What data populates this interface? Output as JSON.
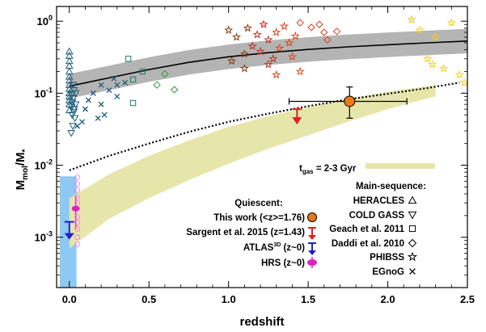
{
  "chart_data": {
    "type": "scatter",
    "x_axis": {
      "label": "redshift",
      "range": [
        -0.08,
        2.5
      ],
      "ticks": [
        0.0,
        0.5,
        1.0,
        1.5,
        2.0,
        2.5
      ],
      "tick_labels": [
        "0.0",
        "0.5",
        "1.0",
        "1.5",
        "2.0",
        "2.5"
      ]
    },
    "y_axis": {
      "label_main": "M",
      "label_sub1": "mol",
      "label_mid": "/M",
      "label_sub2": "*",
      "scale": "log",
      "range": [
        0.0002,
        1.6
      ],
      "ticks": [
        0.001,
        0.01,
        0.1,
        1
      ],
      "tick_base": "10",
      "tick_exponents": [
        "-3",
        "-2",
        "-1",
        "0"
      ]
    },
    "scaling_relation": {
      "x": [
        0.0,
        0.25,
        0.5,
        0.75,
        1.0,
        1.25,
        1.5,
        1.75,
        2.0,
        2.25,
        2.5
      ],
      "y": [
        0.125,
        0.163,
        0.213,
        0.268,
        0.32,
        0.365,
        0.405,
        0.44,
        0.47,
        0.5,
        0.53
      ],
      "band_factor": 1.48
    },
    "extrapolation_dotted": {
      "x": [
        0.0,
        0.25,
        0.5,
        0.75,
        1.0,
        1.25,
        1.5,
        1.75,
        2.0,
        2.25,
        2.45
      ],
      "y": [
        0.0085,
        0.0135,
        0.02,
        0.029,
        0.04,
        0.052,
        0.066,
        0.082,
        0.098,
        0.118,
        0.14
      ]
    },
    "tgas_band": {
      "x": [
        0.0,
        0.25,
        0.5,
        0.75,
        1.0,
        1.25,
        1.5,
        1.75,
        2.0,
        2.25,
        2.3
      ],
      "lower": [
        0.0007,
        0.0018,
        0.0035,
        0.0062,
        0.0105,
        0.017,
        0.026,
        0.04,
        0.06,
        0.085,
        0.09
      ],
      "upper": [
        0.0035,
        0.0075,
        0.0135,
        0.022,
        0.034,
        0.048,
        0.064,
        0.083,
        0.105,
        0.125,
        0.13
      ]
    },
    "hrs_range": {
      "x_range": [
        -0.06,
        0.045
      ],
      "y_range": [
        0.0002,
        0.007
      ]
    },
    "series": [
      {
        "name": "HERACLES",
        "marker": "triangle-up",
        "color": "#1a5a7a",
        "points": [
          [
            0,
            0.38
          ],
          [
            0,
            0.33
          ],
          [
            0,
            0.28
          ],
          [
            0,
            0.24
          ],
          [
            0,
            0.2
          ],
          [
            0,
            0.17
          ],
          [
            0,
            0.15
          ],
          [
            0,
            0.13
          ],
          [
            0,
            0.115
          ],
          [
            0,
            0.1
          ],
          [
            0,
            0.09
          ],
          [
            0,
            0.08
          ],
          [
            0,
            0.07
          ],
          [
            0,
            0.058
          ]
        ]
      },
      {
        "name": "COLD GASS",
        "marker": "triangle-down",
        "color": "#1a5a7a",
        "points": [
          [
            0.015,
            0.095
          ],
          [
            0.025,
            0.13
          ],
          [
            0.02,
            0.075
          ],
          [
            0.03,
            0.06
          ],
          [
            0.018,
            0.05
          ],
          [
            0.035,
            0.045
          ],
          [
            0.022,
            0.035
          ],
          [
            0.012,
            0.028
          ],
          [
            0.03,
            0.11
          ],
          [
            0.025,
            0.085
          ],
          [
            0.04,
            0.07
          ],
          [
            0.015,
            0.065
          ],
          [
            0.028,
            0.055
          ],
          [
            0.04,
            0.1
          ]
        ]
      },
      {
        "name": "Geach et al. 2011",
        "marker": "square",
        "color": "#1e7a6a",
        "points": [
          [
            0.37,
            0.3
          ],
          [
            0.4,
            0.155
          ],
          [
            0.46,
            0.2
          ],
          [
            0.4,
            0.073
          ]
        ]
      },
      {
        "name": "Daddi et al. 2010",
        "marker": "diamond",
        "color": "#2e9a3a",
        "points": [
          [
            0.55,
            0.13
          ],
          [
            0.6,
            0.185
          ],
          [
            0.66,
            0.112
          ],
          [
            1.45,
            0.95
          ],
          [
            1.52,
            0.82
          ],
          [
            1.57,
            0.9
          ],
          [
            1.6,
            0.7
          ],
          [
            1.62,
            0.55
          ],
          [
            1.68,
            0.72
          ]
        ]
      },
      {
        "name": "PHIBSS",
        "marker": "star",
        "color": "#c43020",
        "points": [
          [
            1.0,
            0.75
          ],
          [
            1.02,
            0.28
          ],
          [
            1.05,
            0.6
          ],
          [
            1.1,
            0.35
          ],
          [
            1.12,
            0.8
          ],
          [
            1.15,
            0.45
          ],
          [
            1.18,
            0.65
          ],
          [
            1.2,
            0.38
          ],
          [
            1.22,
            0.9
          ],
          [
            1.25,
            0.55
          ],
          [
            1.28,
            0.3
          ],
          [
            1.3,
            0.7
          ],
          [
            1.32,
            0.42
          ],
          [
            1.35,
            0.85
          ],
          [
            1.38,
            0.5
          ],
          [
            1.4,
            0.32
          ],
          [
            1.42,
            0.62
          ],
          [
            1.45,
            0.2
          ],
          [
            1.1,
            0.22
          ],
          [
            1.25,
            0.25
          ],
          [
            1.3,
            0.18
          ],
          [
            2.15,
            1.05
          ],
          [
            2.2,
            0.75
          ],
          [
            2.25,
            0.3
          ],
          [
            2.3,
            0.6
          ],
          [
            2.28,
            0.25
          ],
          [
            2.35,
            0.22
          ],
          [
            2.4,
            0.95
          ],
          [
            2.45,
            0.18
          ],
          [
            2.48,
            0.14
          ]
        ]
      },
      {
        "name": "EGnoG",
        "marker": "cross",
        "color": "#1a5a7a",
        "points": [
          [
            0.1,
            0.06
          ],
          [
            0.15,
            0.1
          ],
          [
            0.2,
            0.13
          ],
          [
            0.2,
            0.07
          ],
          [
            0.25,
            0.11
          ],
          [
            0.28,
            0.16
          ],
          [
            0.3,
            0.09
          ],
          [
            0.35,
            0.14
          ],
          [
            0.22,
            0.05
          ],
          [
            0.08,
            0.04
          ],
          [
            0.12,
            0.08
          ],
          [
            0.18,
            0.045
          ],
          [
            0.05,
            0.035
          ],
          [
            0.3,
            0.13
          ]
        ]
      }
    ],
    "quiescent": {
      "this_work": {
        "x": 1.76,
        "y": 0.077,
        "xerr": [
          0.38,
          0.36
        ],
        "yerr": [
          0.032,
          0.045
        ],
        "color": "#e87a18"
      },
      "sargent_2015": {
        "x": 1.43,
        "y": 0.06,
        "limit": "upper",
        "color": "#e02020"
      },
      "atlas3d": {
        "x": 0.0,
        "y": 0.0012,
        "limit": "upper",
        "color": "#2020c8"
      },
      "hrs": {
        "x": 0.04,
        "y": 0.0025,
        "yerr": [
          0.0012,
          0.0013
        ],
        "color": "#e020c0"
      }
    },
    "annotation": {
      "label_prefix": "t",
      "label_sub": "gas",
      "label_suffix": " = 2-3 Gyr"
    },
    "legend_right": {
      "title": "Main-sequence:",
      "entries": [
        "HERACLES",
        "COLD GASS",
        "Geach et al. 2011",
        "Daddi et al. 2010",
        "PHIBSS",
        "EGnoG"
      ]
    },
    "legend_left": {
      "title": "Quiescent:",
      "entries": [
        "This work (<z>=1.76)",
        "Sargent et al. 2015 (z=1.43)",
        "ATLAS3D (z~0)",
        "HRS (z~0)"
      ],
      "atlas_prefix": "ATLAS",
      "atlas_sup": "3D",
      "atlas_suffix": " (z~0)"
    },
    "colors": {
      "grey_band": "#b4b4b4",
      "tgas_band": "#e6e6aa",
      "hrs_box": "#8ec8f4"
    }
  }
}
